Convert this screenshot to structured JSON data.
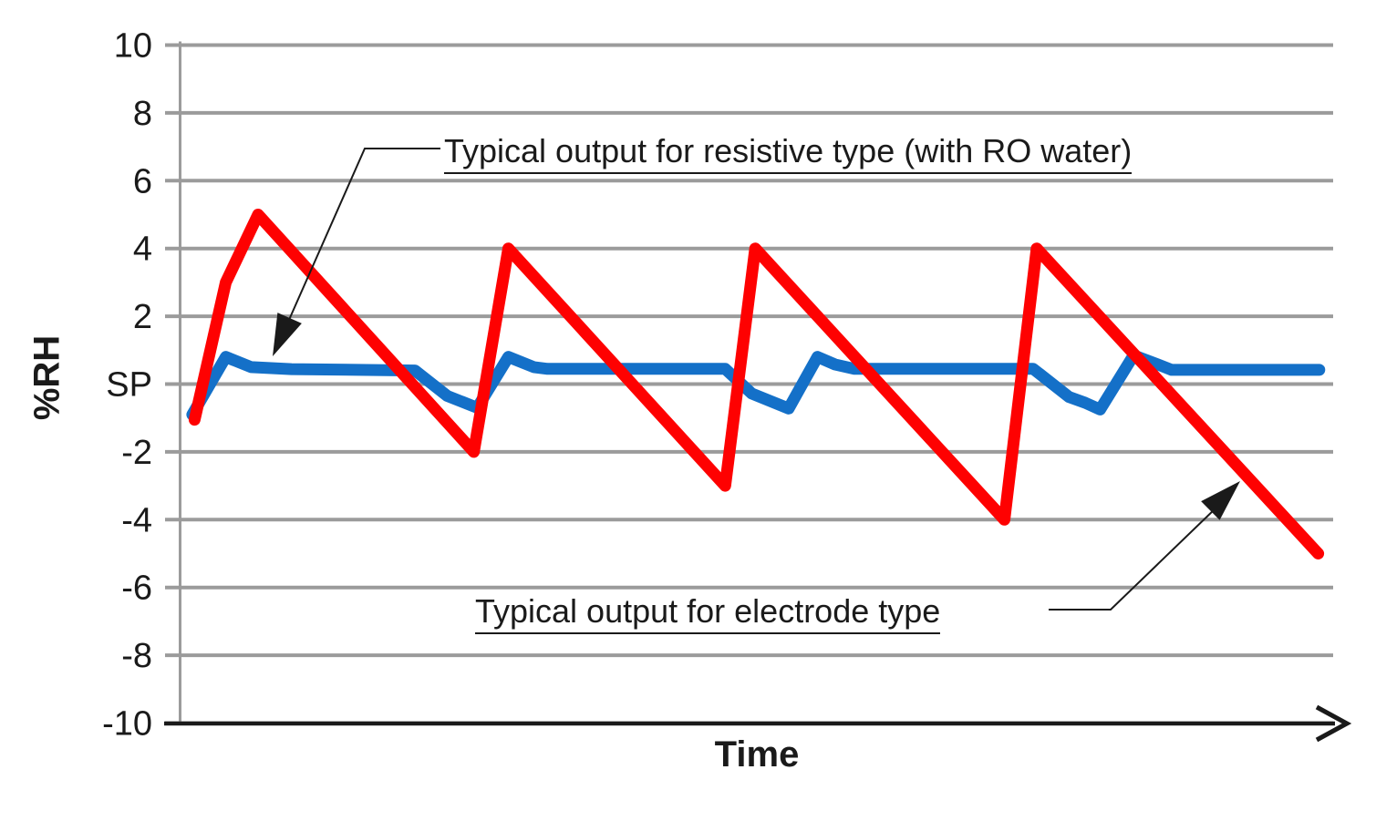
{
  "chart_data": {
    "type": "line",
    "title": "",
    "xlabel": "Time",
    "ylabel": "%RH",
    "ylim": [
      -10,
      10
    ],
    "x_range": [
      0,
      100
    ],
    "x_tick_labels": [],
    "grid": true,
    "legend_position": "none",
    "y_ticks": [
      {
        "value": 10,
        "label": "10"
      },
      {
        "value": 8,
        "label": "8"
      },
      {
        "value": 6,
        "label": "6"
      },
      {
        "value": 4,
        "label": "4"
      },
      {
        "value": 2,
        "label": "2"
      },
      {
        "value": 0,
        "label": "SP"
      },
      {
        "value": -2,
        "label": "-2"
      },
      {
        "value": -4,
        "label": "-4"
      },
      {
        "value": -6,
        "label": "-6"
      },
      {
        "value": -8,
        "label": "-8"
      },
      {
        "value": -10,
        "label": "-10"
      }
    ],
    "series": [
      {
        "name": "Typical output for resistive type (with RO water)",
        "color": "#1470C8",
        "points": [
          [
            1.1,
            -0.9
          ],
          [
            4.0,
            0.8
          ],
          [
            6.2,
            0.5
          ],
          [
            9.7,
            0.44
          ],
          [
            20.4,
            0.4
          ],
          [
            23.2,
            -0.35
          ],
          [
            25.8,
            -0.7
          ],
          [
            28.5,
            0.8
          ],
          [
            30.7,
            0.5
          ],
          [
            31.9,
            0.45
          ],
          [
            47.3,
            0.45
          ],
          [
            49.6,
            -0.28
          ],
          [
            52.8,
            -0.72
          ],
          [
            55.3,
            0.8
          ],
          [
            56.8,
            0.58
          ],
          [
            58.5,
            0.45
          ],
          [
            74.0,
            0.45
          ],
          [
            77.1,
            -0.38
          ],
          [
            78.5,
            -0.55
          ],
          [
            79.8,
            -0.75
          ],
          [
            82.7,
            0.85
          ],
          [
            84.8,
            0.58
          ],
          [
            86.0,
            0.42
          ],
          [
            98.8,
            0.42
          ]
        ]
      },
      {
        "name": "Typical output for electrode type",
        "color": "#FE0101",
        "points": [
          [
            1.3,
            -1.05
          ],
          [
            4.0,
            3.0
          ],
          [
            6.8,
            5.0
          ],
          [
            25.5,
            -2.0
          ],
          [
            28.5,
            4.0
          ],
          [
            47.3,
            -3.0
          ],
          [
            49.9,
            4.0
          ],
          [
            71.5,
            -4.0
          ],
          [
            74.3,
            4.0
          ],
          [
            98.7,
            -5.0
          ]
        ]
      }
    ],
    "annotations": [
      {
        "id": "resistive",
        "text": "Typical output for resistive type (with RO water)"
      },
      {
        "id": "electrode",
        "text": "Typical output for electrode type"
      }
    ],
    "colors": {
      "grid": "#9B9B9B",
      "axis": "#1A1A1A",
      "text": "#1A1A1A"
    }
  }
}
